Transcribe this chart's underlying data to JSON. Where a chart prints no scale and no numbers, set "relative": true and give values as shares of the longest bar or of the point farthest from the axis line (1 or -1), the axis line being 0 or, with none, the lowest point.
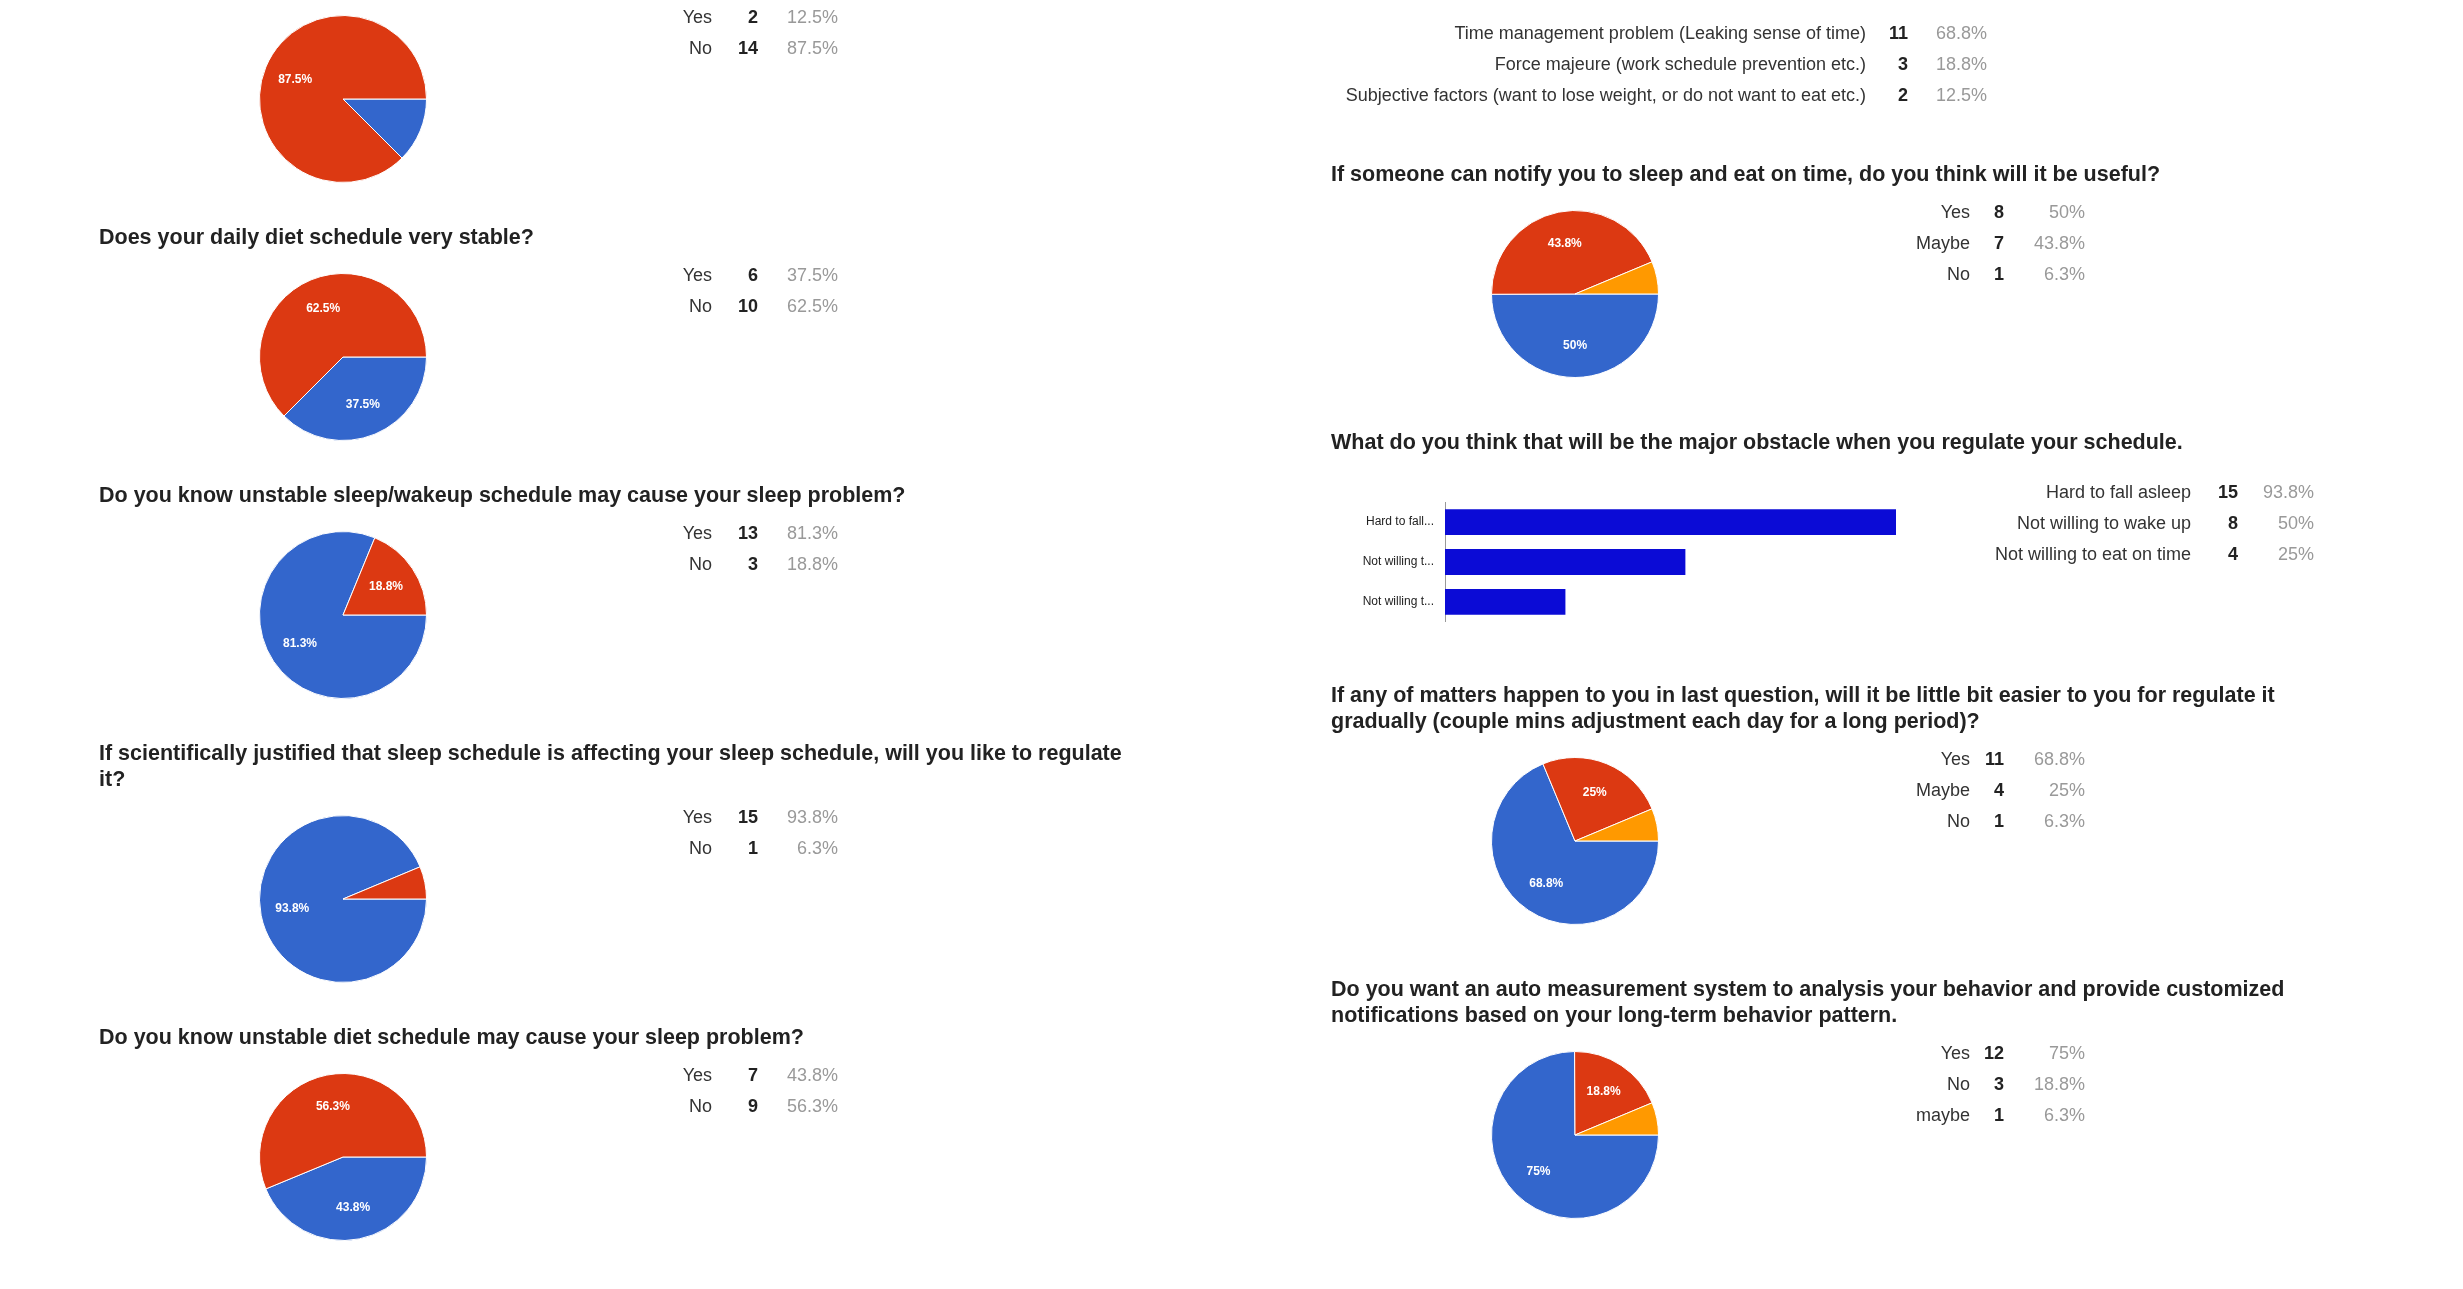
{
  "chart_data": [
    {
      "type": "pie",
      "categories": [
        null,
        null
      ],
      "values": [
        12.5,
        87.5
      ],
      "colors": [
        "#3366cc",
        "#dc3912"
      ],
      "value_labels": [
        null,
        "87.5%"
      ]
    },
    {
      "type": "other",
      "categories": [
        "Yes",
        "No"
      ],
      "series": [
        {
          "color": "#222222",
          "values": [
            2,
            14
          ]
        },
        {
          "color": "#999999",
          "values": [
            12.5,
            87.5
          ],
          "value_labels": [
            "12.5%",
            "87.5%"
          ]
        }
      ],
      "data_labels": true
    },
    {
      "type": "pie",
      "title": "Does your daily diet schedule very stable?",
      "categories": [
        null,
        null
      ],
      "values": [
        37.5,
        62.5
      ],
      "colors": [
        "#3366cc",
        "#dc3912"
      ],
      "value_labels": [
        "37.5%",
        "62.5%"
      ]
    },
    {
      "type": "other",
      "categories": [
        "Yes",
        "No"
      ],
      "series": [
        {
          "color": "#222222",
          "values": [
            6,
            10
          ]
        },
        {
          "color": "#999999",
          "values": [
            37.5,
            62.5
          ],
          "value_labels": [
            "37.5%",
            "62.5%"
          ]
        }
      ],
      "data_labels": true
    },
    {
      "type": "pie",
      "title": "Do you know unstable sleep/wakeup schedule may cause your sleep problem?",
      "categories": [
        null,
        null
      ],
      "values": [
        81.3,
        18.8
      ],
      "colors": [
        "#3366cc",
        "#dc3912"
      ],
      "value_labels": [
        "81.3%",
        "18.8%"
      ]
    },
    {
      "type": "other",
      "categories": [
        "Yes",
        "No"
      ],
      "series": [
        {
          "color": "#222222",
          "values": [
            13,
            3
          ]
        },
        {
          "color": "#999999",
          "values": [
            81.3,
            18.8
          ],
          "value_labels": [
            "81.3%",
            "18.8%"
          ]
        }
      ],
      "data_labels": true
    },
    {
      "type": "pie",
      "title": "If scientifically justified that sleep schedule is affecting your sleep schedule, will you like to regulate it?",
      "categories": [
        null,
        null
      ],
      "values": [
        93.8,
        6.3
      ],
      "colors": [
        "#3366cc",
        "#dc3912"
      ],
      "value_labels": [
        "93.8%",
        null
      ]
    },
    {
      "type": "other",
      "categories": [
        "Yes",
        "No"
      ],
      "series": [
        {
          "color": "#222222",
          "values": [
            15,
            1
          ]
        },
        {
          "color": "#999999",
          "values": [
            93.8,
            6.3
          ],
          "value_labels": [
            "93.8%",
            "6.3%"
          ]
        }
      ],
      "data_labels": true
    },
    {
      "type": "pie",
      "title": "Do you know unstable diet schedule may cause your sleep problem?",
      "categories": [
        null,
        null
      ],
      "values": [
        43.8,
        56.3
      ],
      "colors": [
        "#3366cc",
        "#dc3912"
      ],
      "value_labels": [
        "43.8%",
        "56.3%"
      ]
    },
    {
      "type": "other",
      "categories": [
        "Yes",
        "No"
      ],
      "series": [
        {
          "color": "#222222",
          "values": [
            7,
            9
          ]
        },
        {
          "color": "#999999",
          "values": [
            43.8,
            56.3
          ],
          "value_labels": [
            "43.8%",
            "56.3%"
          ]
        }
      ],
      "data_labels": true
    },
    {
      "type": "other",
      "categories": [
        "Time management problem (Leaking sense of time)",
        "Force majeure (work schedule prevention etc.)",
        "Subjective factors (want to lose weight, or do not want to eat etc.)"
      ],
      "series": [
        {
          "color": "#222222",
          "values": [
            11,
            3,
            2
          ]
        },
        {
          "color": "#999999",
          "values": [
            68.8,
            18.8,
            12.5
          ],
          "value_labels": [
            "68.8%",
            "18.8%",
            "12.5%"
          ]
        }
      ],
      "data_labels": true
    },
    {
      "type": "pie",
      "title": "If someone can notify you to sleep and eat on time, do you think will it be useful?",
      "categories": [
        null,
        null,
        null
      ],
      "values": [
        50,
        43.8,
        6.3
      ],
      "colors": [
        "#3366cc",
        "#dc3912",
        "#ff9900"
      ],
      "value_labels": [
        "50%",
        "43.8%",
        null
      ]
    },
    {
      "type": "other",
      "categories": [
        "Yes",
        "Maybe",
        "No"
      ],
      "series": [
        {
          "color": "#222222",
          "values": [
            8,
            7,
            1
          ]
        },
        {
          "color": "#999999",
          "values": [
            50,
            43.8,
            6.3
          ],
          "value_labels": [
            "50%",
            "43.8%",
            "6.3%"
          ]
        }
      ],
      "data_labels": true
    },
    {
      "type": "bar",
      "orientation": "horizontal",
      "relative": true,
      "tick_labels": "y",
      "title": "What do you think that will be the major obstacle when you regulate your schedule.",
      "categories": [
        "Hard to fall...",
        "Not willing t...",
        "Not willing t..."
      ],
      "values": [
        1,
        0.533,
        0.267
      ],
      "color": "#0b0bd6"
    },
    {
      "type": "other",
      "categories": [
        "Hard to fall asleep",
        "Not willing to wake up",
        "Not willing to eat on time"
      ],
      "series": [
        {
          "color": "#222222",
          "values": [
            15,
            8,
            4
          ]
        },
        {
          "color": "#999999",
          "values": [
            93.8,
            50,
            25
          ],
          "value_labels": [
            "93.8%",
            "50%",
            "25%"
          ]
        }
      ],
      "data_labels": true
    },
    {
      "type": "pie",
      "title": "If any of matters happen to you in last question, will it be little bit easier to you for regulate it gradually (couple mins adjustment each day for a long period)?",
      "categories": [
        null,
        null,
        null
      ],
      "values": [
        68.8,
        25,
        6.3
      ],
      "colors": [
        "#3366cc",
        "#dc3912",
        "#ff9900"
      ],
      "value_labels": [
        "68.8%",
        "25%",
        null
      ]
    },
    {
      "type": "other",
      "categories": [
        "Yes",
        "Maybe",
        "No"
      ],
      "series": [
        {
          "color": "#222222",
          "values": [
            11,
            4,
            1
          ]
        },
        {
          "color": "#999999",
          "values": [
            68.8,
            25,
            6.3
          ],
          "value_labels": [
            "68.8%",
            "25%",
            "6.3%"
          ]
        }
      ],
      "data_labels": true
    },
    {
      "type": "pie",
      "title": "Do you want an auto measurement system to analysis your behavior and provide customized notifications based on your long-term behavior pattern.",
      "categories": [
        null,
        null,
        null
      ],
      "values": [
        75,
        18.8,
        6.3
      ],
      "colors": [
        "#3366cc",
        "#dc3912",
        "#ff9900"
      ],
      "value_labels": [
        "75%",
        "18.8%",
        null
      ]
    },
    {
      "type": "other",
      "categories": [
        "Yes",
        "No",
        "maybe"
      ],
      "series": [
        {
          "color": "#222222",
          "values": [
            12,
            3,
            1
          ]
        },
        {
          "color": "#999999",
          "values": [
            75,
            18.8,
            6.3
          ],
          "value_labels": [
            "75%",
            "18.8%",
            "6.3%"
          ]
        }
      ],
      "data_labels": true
    }
  ]
}
